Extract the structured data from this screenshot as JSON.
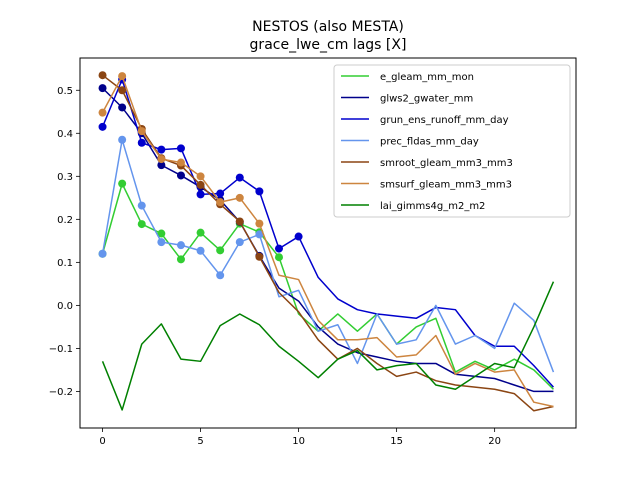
{
  "chart_data": {
    "type": "line",
    "title": "NESTOS (also MESTA)",
    "subtitle": "grace_lwe_cm lags [X]",
    "xlabel": "",
    "ylabel": "",
    "xlim": [
      -1.15,
      24.15
    ],
    "ylim": [
      -0.285,
      0.575
    ],
    "xticks": [
      0,
      5,
      10,
      15,
      20
    ],
    "yticks": [
      -0.2,
      -0.1,
      0.0,
      0.1,
      0.2,
      0.3,
      0.4,
      0.5
    ],
    "ytick_labels": [
      "−0.2",
      "−0.1",
      "0.0",
      "0.1",
      "0.2",
      "0.3",
      "0.4",
      "0.5"
    ],
    "grid": false,
    "legend": "top-right",
    "x": [
      0,
      1,
      2,
      3,
      4,
      5,
      6,
      7,
      8,
      9,
      10,
      11,
      12,
      13,
      14,
      15,
      16,
      17,
      18,
      19,
      20,
      21,
      22,
      23
    ],
    "series": [
      {
        "name": "e_gleam_mm_mon",
        "color": "#32cd32",
        "values": [
          0.12,
          0.283,
          0.189,
          0.167,
          0.107,
          0.169,
          0.128,
          0.19,
          0.17,
          0.112,
          -0.02,
          -0.06,
          -0.02,
          -0.06,
          -0.02,
          -0.09,
          -0.05,
          -0.03,
          -0.155,
          -0.13,
          -0.15,
          -0.125,
          -0.15,
          -0.195
        ],
        "markers": [
          0,
          1,
          2,
          3,
          4,
          5,
          6,
          7,
          8,
          9
        ]
      },
      {
        "name": "glws2_gwater_mm",
        "color": "#00008b",
        "values": [
          0.505,
          0.46,
          0.4,
          0.326,
          0.302,
          0.275,
          0.245,
          0.194,
          0.115,
          0.04,
          0.01,
          -0.05,
          -0.09,
          -0.11,
          -0.12,
          -0.13,
          -0.135,
          -0.135,
          -0.16,
          -0.165,
          -0.17,
          -0.185,
          -0.2,
          -0.2
        ],
        "markers": [
          0,
          1,
          2,
          3,
          4,
          5,
          6,
          7,
          8
        ]
      },
      {
        "name": "grun_ens_runoff_mm_day",
        "color": "#0000cd",
        "values": [
          0.415,
          0.525,
          0.378,
          0.362,
          0.365,
          0.258,
          0.26,
          0.297,
          0.265,
          0.132,
          0.16,
          0.065,
          0.015,
          -0.01,
          -0.02,
          -0.025,
          -0.03,
          -0.005,
          -0.01,
          -0.07,
          -0.095,
          -0.095,
          -0.14,
          -0.19
        ],
        "markers": [
          0,
          1,
          2,
          3,
          4,
          5,
          6,
          7,
          8,
          9,
          10
        ]
      },
      {
        "name": "prec_fldas_mm_day",
        "color": "#6495ed",
        "values": [
          0.12,
          0.385,
          0.232,
          0.147,
          0.14,
          0.127,
          0.07,
          0.147,
          0.165,
          0.02,
          0.035,
          -0.06,
          -0.045,
          -0.135,
          -0.02,
          -0.09,
          -0.08,
          0.0,
          -0.09,
          -0.07,
          -0.1,
          0.005,
          -0.035,
          -0.155
        ],
        "markers": [
          0,
          1,
          2,
          3,
          4,
          5,
          6,
          7,
          8
        ]
      },
      {
        "name": "smroot_gleam_mm3_mm3",
        "color": "#8b4513",
        "values": [
          0.535,
          0.5,
          0.41,
          0.342,
          0.325,
          0.28,
          0.235,
          0.195,
          0.113,
          0.03,
          -0.015,
          -0.08,
          -0.125,
          -0.1,
          -0.135,
          -0.165,
          -0.155,
          -0.175,
          -0.185,
          -0.19,
          -0.195,
          -0.205,
          -0.245,
          -0.235
        ],
        "markers": [
          0,
          1,
          2,
          3,
          4,
          5,
          6,
          7,
          8
        ]
      },
      {
        "name": "smsurf_gleam_mm3_mm3",
        "color": "#cd853f",
        "values": [
          0.448,
          0.533,
          0.405,
          0.34,
          0.332,
          0.3,
          0.24,
          0.25,
          0.19,
          0.07,
          0.06,
          -0.035,
          -0.08,
          -0.08,
          -0.075,
          -0.12,
          -0.115,
          -0.07,
          -0.16,
          -0.135,
          -0.155,
          -0.15,
          -0.225,
          -0.235
        ],
        "markers": [
          0,
          1,
          2,
          3,
          4,
          5,
          6,
          7,
          8
        ]
      },
      {
        "name": "lai_gimms4g_m2_m2",
        "color": "#008000",
        "values": [
          -0.13,
          -0.243,
          -0.09,
          -0.043,
          -0.125,
          -0.13,
          -0.047,
          -0.02,
          -0.045,
          -0.095,
          -0.13,
          -0.168,
          -0.125,
          -0.105,
          -0.15,
          -0.14,
          -0.135,
          -0.185,
          -0.195,
          -0.165,
          -0.135,
          -0.145,
          -0.05,
          0.055
        ],
        "markers": []
      }
    ]
  }
}
